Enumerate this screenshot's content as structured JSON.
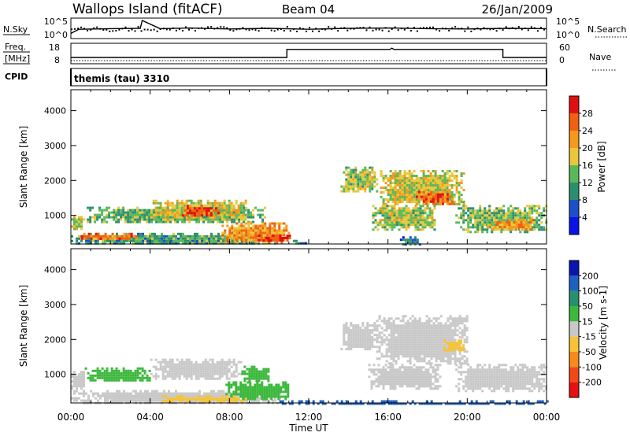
{
  "header": {
    "station": "Wallops Island (fitACF)",
    "beam": "Beam 04",
    "date": "26/Jan/2009"
  },
  "strip_sky": {
    "left_label": "N.Sky",
    "left_ticks": [
      "10^5",
      "10^0"
    ],
    "right_label": "N.Search",
    "right_ticks": [
      "10^5",
      "10^0"
    ]
  },
  "strip_freq": {
    "left_label_1": "Freq.",
    "left_label_2": "[MHz]",
    "left_ticks": [
      "18",
      "8"
    ],
    "right_label": "Nave",
    "right_ticks": [
      "60",
      "0"
    ],
    "cpid_label": "CPID",
    "cpid_value": "themis (tau) 3310"
  },
  "colors": {
    "power_scale": [
      "#0a14e6",
      "#1e4fc8",
      "#2a8f6e",
      "#5bb85a",
      "#e8c83a",
      "#f59a1a",
      "#f06010",
      "#e01010"
    ],
    "velocity_scale": [
      "#e81010",
      "#f04818",
      "#f68a1a",
      "#f6c434",
      "#c8c8c8",
      "#3cb83c",
      "#2a8f6e",
      "#1e5fc0",
      "#0a14b0"
    ]
  },
  "chart_data": [
    {
      "type": "heatmap",
      "panel": "power",
      "xlabel": "Time UT",
      "ylabel": "Slant Range [km]",
      "x_ticks": [
        "00:00",
        "04:00",
        "08:00",
        "12:00",
        "16:00",
        "20:00",
        "00:00"
      ],
      "xlim_hours": [
        0,
        24
      ],
      "y_ticks": [
        1000,
        2000,
        3000,
        4000
      ],
      "ylim_km": [
        180,
        4600
      ],
      "colorbar_label": "Power [dB]",
      "colorbar_ticks": [
        "28",
        "24",
        "20",
        "16",
        "12",
        "8",
        "4"
      ],
      "colorbar_range": [
        0,
        32
      ],
      "regions": [
        {
          "t0": 0.0,
          "t1": 0.6,
          "r0": 600,
          "r1": 1050,
          "level": 18
        },
        {
          "t0": 0.0,
          "t1": 10.4,
          "r0": 180,
          "r1": 500,
          "level": 12
        },
        {
          "t0": 0.5,
          "t1": 3.3,
          "r0": 300,
          "r1": 500,
          "level": 24
        },
        {
          "t0": 0.8,
          "t1": 9.8,
          "r0": 800,
          "r1": 1250,
          "level": 13
        },
        {
          "t0": 4.0,
          "t1": 8.8,
          "r0": 900,
          "r1": 1450,
          "level": 18
        },
        {
          "t0": 5.6,
          "t1": 7.4,
          "r0": 1000,
          "r1": 1300,
          "level": 27
        },
        {
          "t0": 7.6,
          "t1": 11.0,
          "r0": 250,
          "r1": 800,
          "level": 22
        },
        {
          "t0": 9.2,
          "t1": 11.0,
          "r0": 250,
          "r1": 450,
          "level": 28
        },
        {
          "t0": 11.2,
          "t1": 11.8,
          "r0": 180,
          "r1": 300,
          "level": 8
        },
        {
          "t0": 13.6,
          "t1": 15.4,
          "r0": 1700,
          "r1": 2400,
          "level": 16
        },
        {
          "t0": 15.6,
          "t1": 19.8,
          "r0": 1300,
          "r1": 2300,
          "level": 18
        },
        {
          "t0": 17.4,
          "t1": 19.2,
          "r0": 1350,
          "r1": 1700,
          "level": 26
        },
        {
          "t0": 15.2,
          "t1": 18.4,
          "r0": 600,
          "r1": 1300,
          "level": 16
        },
        {
          "t0": 19.4,
          "t1": 24.0,
          "r0": 550,
          "r1": 1300,
          "level": 14
        },
        {
          "t0": 21.0,
          "t1": 23.4,
          "r0": 600,
          "r1": 900,
          "level": 22
        },
        {
          "t0": 16.6,
          "t1": 17.6,
          "r0": 180,
          "r1": 400,
          "level": 8
        }
      ]
    },
    {
      "type": "heatmap",
      "panel": "velocity",
      "xlabel": "Time UT",
      "ylabel": "Slant Range [km]",
      "x_ticks": [
        "00:00",
        "04:00",
        "08:00",
        "12:00",
        "16:00",
        "20:00",
        "00:00"
      ],
      "xlim_hours": [
        0,
        24
      ],
      "y_ticks": [
        1000,
        2000,
        3000,
        4000
      ],
      "ylim_km": [
        180,
        4600
      ],
      "colorbar_label": "Velocity [m s-1]",
      "colorbar_ticks": [
        "200",
        "100",
        "50",
        "15",
        "-15",
        "-50",
        "-100",
        "-200"
      ],
      "regions": [
        {
          "t0": 0.0,
          "t1": 0.7,
          "r0": 600,
          "r1": 1100,
          "level": 0
        },
        {
          "t0": 0.7,
          "t1": 4.0,
          "r0": 800,
          "r1": 1200,
          "level": 25
        },
        {
          "t0": 4.0,
          "t1": 8.6,
          "r0": 900,
          "r1": 1450,
          "level": 0
        },
        {
          "t0": 8.6,
          "t1": 10.0,
          "r0": 800,
          "r1": 1250,
          "level": 25
        },
        {
          "t0": 0.0,
          "t1": 10.6,
          "r0": 180,
          "r1": 550,
          "level": 0
        },
        {
          "t0": 7.8,
          "t1": 11.0,
          "r0": 300,
          "r1": 800,
          "level": 25
        },
        {
          "t0": 4.6,
          "t1": 9.0,
          "r0": 250,
          "r1": 400,
          "level": -30
        },
        {
          "t0": 10.4,
          "t1": 24.0,
          "r0": 180,
          "r1": 260,
          "level": 150
        },
        {
          "t0": 13.6,
          "t1": 15.4,
          "r0": 1700,
          "r1": 2500,
          "level": 0
        },
        {
          "t0": 15.4,
          "t1": 20.0,
          "r0": 1300,
          "r1": 2700,
          "level": 0
        },
        {
          "t0": 15.0,
          "t1": 18.6,
          "r0": 600,
          "r1": 1300,
          "level": 0
        },
        {
          "t0": 19.4,
          "t1": 24.0,
          "r0": 550,
          "r1": 1300,
          "level": 0
        },
        {
          "t0": 18.8,
          "t1": 19.8,
          "r0": 1700,
          "r1": 2000,
          "level": -30
        }
      ]
    },
    {
      "type": "line",
      "panel": "noise-sky",
      "ylabel": "N.Sky",
      "x": [
        0,
        0.4,
        2,
        3.5,
        3.6,
        4.5,
        6,
        8,
        10,
        12,
        14,
        16,
        18,
        20,
        22,
        24
      ],
      "values": [
        0.9,
        2.2,
        2.4,
        2.5,
        5.0,
        2.4,
        2.6,
        2.3,
        2.5,
        2.2,
        2.5,
        2.6,
        2.4,
        2.3,
        2.5,
        2.4
      ],
      "ylim": [
        0,
        5
      ]
    },
    {
      "type": "line",
      "panel": "frequency",
      "ylabel": "Freq. [MHz]",
      "x": [
        0,
        10.9,
        10.9,
        16.1,
        16.2,
        16.3,
        21.8,
        21.8,
        24
      ],
      "values": [
        10.5,
        10.5,
        15.6,
        15.6,
        16.4,
        15.6,
        15.6,
        10.5,
        10.5
      ],
      "ylim": [
        8,
        18
      ]
    },
    {
      "type": "line",
      "panel": "nave",
      "ylabel": "Nave",
      "x": [
        0,
        24
      ],
      "values": [
        3,
        3
      ],
      "ylim": [
        0,
        60
      ]
    }
  ],
  "cpid_marks": [
    0.0,
    24.0
  ]
}
